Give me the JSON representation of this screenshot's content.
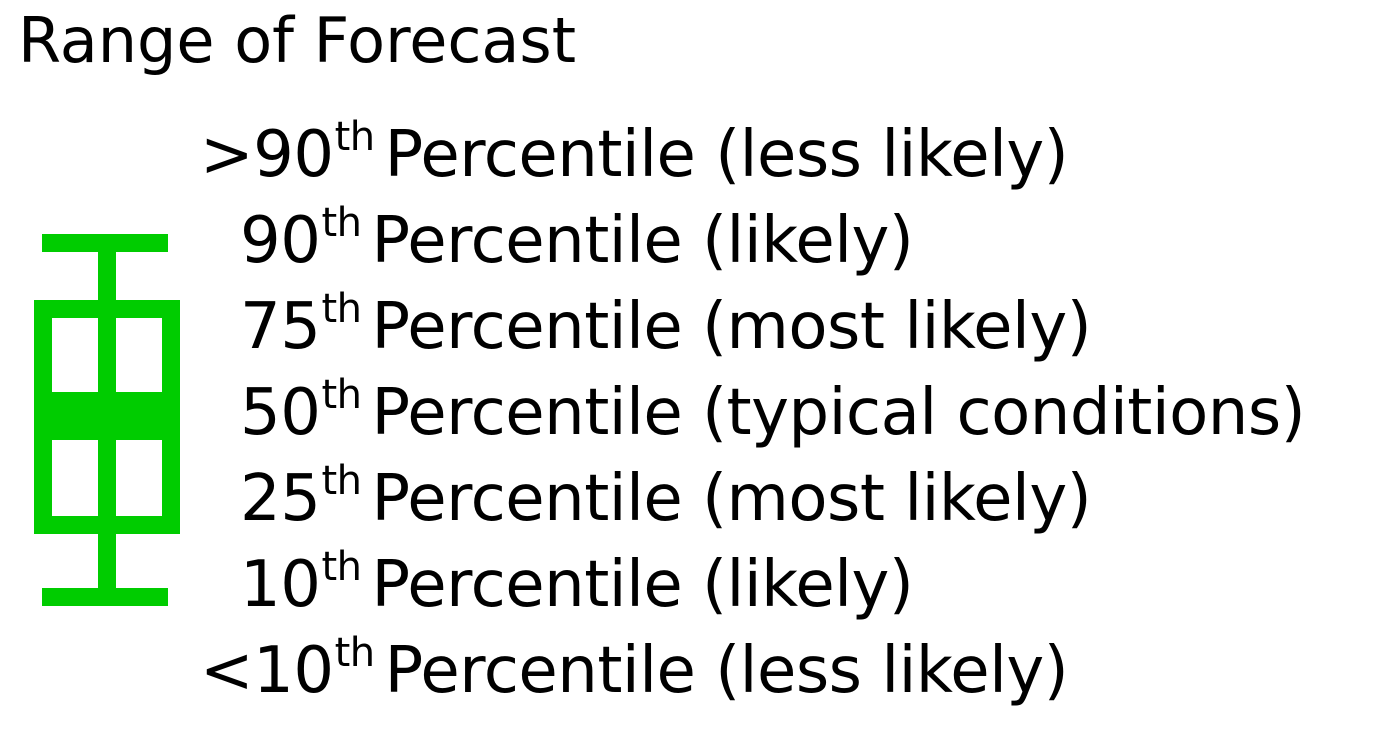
{
  "title": "Range of Forecast",
  "colors": {
    "accent": "#00cc00"
  },
  "rows": [
    {
      "prefix": ">90",
      "sup": "th",
      "suffix": "Percentile (less likely)"
    },
    {
      "prefix": "90",
      "sup": "th",
      "suffix": "Percentile (likely)"
    },
    {
      "prefix": "75",
      "sup": "th",
      "suffix": "Percentile (most likely)"
    },
    {
      "prefix": "50",
      "sup": "th",
      "suffix": "Percentile (typical conditions)"
    },
    {
      "prefix": "25",
      "sup": "th",
      "suffix": "Percentile (most likely)"
    },
    {
      "prefix": "10",
      "sup": "th",
      "suffix": "Percentile (likely)"
    },
    {
      "prefix": "<10",
      "sup": "th",
      "suffix": "Percentile (less likely)"
    }
  ],
  "legend_icon": "box-plot-icon"
}
